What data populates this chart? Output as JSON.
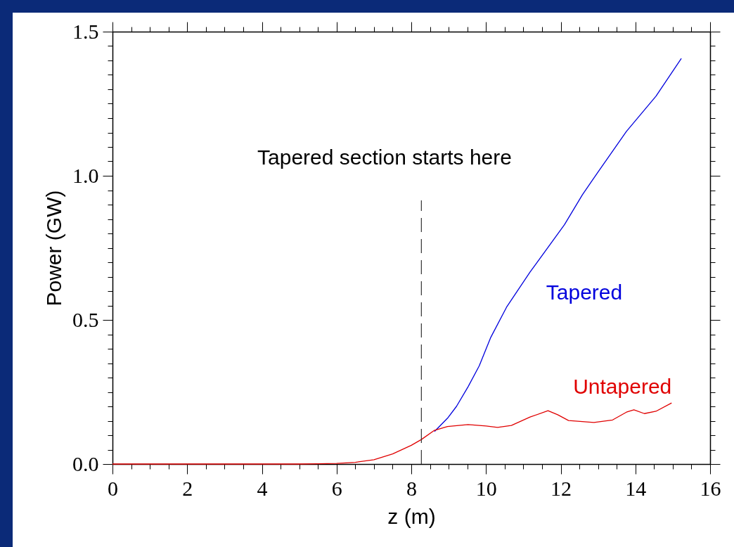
{
  "chart_data": {
    "type": "line",
    "xlabel": "z (m)",
    "ylabel": "Power (GW)",
    "xlim": [
      0,
      16
    ],
    "ylim": [
      0,
      1.5
    ],
    "xticks": [
      0,
      {
        "value": 0.5,
        "label": null
      },
      {
        "value": 1,
        "label": null
      },
      {
        "value": 1.5,
        "label": null
      },
      2,
      {
        "value": 2.5,
        "label": null
      },
      {
        "value": 3,
        "label": null
      },
      {
        "value": 3.5,
        "label": null
      },
      4,
      {
        "value": 4.5,
        "label": null
      },
      {
        "value": 5,
        "label": null
      },
      {
        "value": 5.5,
        "label": null
      },
      6,
      {
        "value": 6.5,
        "label": null
      },
      {
        "value": 7,
        "label": null
      },
      {
        "value": 7.5,
        "label": null
      },
      8,
      {
        "value": 8.5,
        "label": null
      },
      {
        "value": 9,
        "label": null
      },
      {
        "value": 9.5,
        "label": null
      },
      10,
      {
        "value": 10.5,
        "label": null
      },
      {
        "value": 11,
        "label": null
      },
      {
        "value": 11.5,
        "label": null
      },
      12,
      {
        "value": 12.5,
        "label": null
      },
      {
        "value": 13,
        "label": null
      },
      {
        "value": 13.5,
        "label": null
      },
      14,
      {
        "value": 14.5,
        "label": null
      },
      {
        "value": 15,
        "label": null
      },
      {
        "value": 15.5,
        "label": null
      },
      16
    ],
    "yticks": [
      {
        "value": 0,
        "label": "0.0"
      },
      {
        "value": 0.05,
        "label": null
      },
      {
        "value": 0.1,
        "label": null
      },
      {
        "value": 0.15,
        "label": null
      },
      {
        "value": 0.2,
        "label": null
      },
      {
        "value": 0.25,
        "label": null
      },
      {
        "value": 0.3,
        "label": null
      },
      {
        "value": 0.35,
        "label": null
      },
      {
        "value": 0.4,
        "label": null
      },
      {
        "value": 0.45,
        "label": null
      },
      0.5,
      {
        "value": 0.55,
        "label": null
      },
      {
        "value": 0.6,
        "label": null
      },
      {
        "value": 0.65,
        "label": null
      },
      {
        "value": 0.7,
        "label": null
      },
      {
        "value": 0.75,
        "label": null
      },
      {
        "value": 0.8,
        "label": null
      },
      {
        "value": 0.85,
        "label": null
      },
      {
        "value": 0.9,
        "label": null
      },
      {
        "value": 0.95,
        "label": null
      },
      {
        "value": 1,
        "label": "1.0"
      },
      {
        "value": 1.05,
        "label": null
      },
      {
        "value": 1.1,
        "label": null
      },
      {
        "value": 1.15,
        "label": null
      },
      {
        "value": 1.2,
        "label": null
      },
      {
        "value": 1.25,
        "label": null
      },
      {
        "value": 1.3,
        "label": null
      },
      {
        "value": 1.35,
        "label": null
      },
      {
        "value": 1.4,
        "label": null
      },
      {
        "value": 1.45,
        "label": null
      },
      1.5
    ],
    "series": [
      {
        "name": "Tapered",
        "color": "#0000dd",
        "x": [
          8.62,
          8.97,
          9.21,
          9.52,
          9.82,
          10.13,
          10.55,
          11.18,
          12.1,
          12.58,
          13.02,
          13.76,
          14.55,
          15.23
        ],
        "values": [
          0.113,
          0.159,
          0.2,
          0.268,
          0.341,
          0.44,
          0.544,
          0.666,
          0.83,
          0.934,
          1.017,
          1.154,
          1.276,
          1.407
        ]
      },
      {
        "name": "Untapered",
        "color": "#e00000",
        "x": [
          0,
          1,
          2,
          3,
          4,
          5,
          5.5,
          6,
          6.5,
          7,
          7.5,
          8,
          8.27,
          8.62,
          8.97,
          9.52,
          10.0,
          10.31,
          10.68,
          11.18,
          11.66,
          11.92,
          12.21,
          12.89,
          13.39,
          13.76,
          13.96,
          14.24,
          14.55,
          14.97
        ],
        "values": [
          0,
          0,
          0,
          0,
          0,
          0,
          0.001,
          0.002,
          0.006,
          0.015,
          0.035,
          0.065,
          0.085,
          0.117,
          0.13,
          0.137,
          0.132,
          0.127,
          0.134,
          0.163,
          0.185,
          0.171,
          0.151,
          0.144,
          0.153,
          0.18,
          0.188,
          0.175,
          0.183,
          0.212
        ]
      }
    ],
    "ref_lines": [
      {
        "axis": "x",
        "value": 8.27,
        "color": "#333333",
        "line_style": "dashed"
      }
    ],
    "annotations": [
      "Tapered section starts here"
    ]
  }
}
